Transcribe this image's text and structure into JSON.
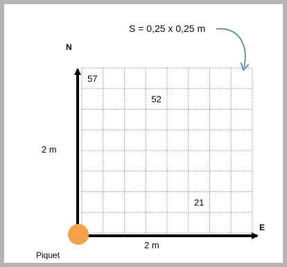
{
  "surface_label": "S = 0,25 x 0,25 m",
  "north_label": "N",
  "east_label": "E",
  "vertical_length_label": "2 m",
  "horizontal_length_label": "2 m",
  "origin_label": "Piquet",
  "grid": {
    "columns": 8,
    "rows": 8
  },
  "cell_numbers": [
    {
      "value": "57",
      "col": 0,
      "row": 0
    },
    {
      "value": "52",
      "col": 3,
      "row": 1
    },
    {
      "value": "21",
      "col": 5,
      "row": 6
    }
  ],
  "colors": {
    "frame": "#b3b3b3",
    "grid_line": "#8c8c8c",
    "axis": "#000000",
    "piquet": "#f5a04a",
    "callout_arrow": "#3a6fb0"
  }
}
